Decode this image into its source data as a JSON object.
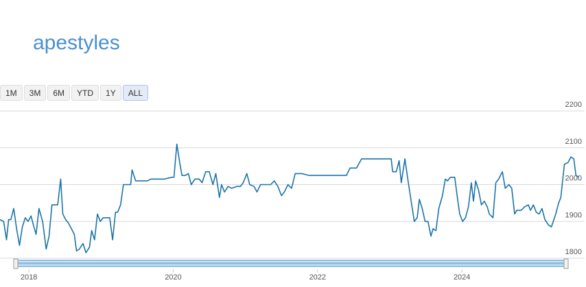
{
  "chart_data": {
    "type": "line",
    "title": "apestyles",
    "range_buttons": [
      "1M",
      "3M",
      "6M",
      "YTD",
      "1Y",
      "ALL"
    ],
    "selected_range": "ALL",
    "color": "#1a73a8",
    "grid": true,
    "y_axis_side": "right",
    "xlim": [
      2017.6,
      2025.7
    ],
    "xticks": [
      2018,
      2020,
      2022,
      2024
    ],
    "ylim": [
      1800,
      2200
    ],
    "yticks": [
      1800,
      1900,
      2000,
      2100,
      2200
    ],
    "x": [
      2017.6,
      2017.65,
      2017.69,
      2017.72,
      2017.75,
      2017.79,
      2017.83,
      2017.87,
      2017.91,
      2017.95,
      2017.99,
      2018.03,
      2018.07,
      2018.1,
      2018.14,
      2018.19,
      2018.24,
      2018.28,
      2018.32,
      2018.36,
      2018.4,
      2018.44,
      2018.47,
      2018.51,
      2018.55,
      2018.59,
      2018.63,
      2018.66,
      2018.7,
      2018.75,
      2018.79,
      2018.84,
      2018.87,
      2018.91,
      2018.95,
      2018.99,
      2019.03,
      2019.07,
      2019.12,
      2019.16,
      2019.2,
      2019.23,
      2019.27,
      2019.31,
      2019.37,
      2019.41,
      2019.43,
      2019.48,
      2019.55,
      2019.64,
      2019.69,
      2019.79,
      2019.88,
      2019.98,
      2020.01,
      2020.05,
      2020.09,
      2020.12,
      2020.17,
      2020.21,
      2020.25,
      2020.3,
      2020.36,
      2020.4,
      2020.45,
      2020.5,
      2020.55,
      2020.59,
      2020.64,
      2020.67,
      2020.71,
      2020.76,
      2020.81,
      2020.88,
      2020.93,
      2020.97,
      2021.02,
      2021.06,
      2021.12,
      2021.16,
      2021.21,
      2021.29,
      2021.35,
      2021.4,
      2021.45,
      2021.5,
      2021.54,
      2021.59,
      2021.64,
      2021.69,
      2021.78,
      2021.88,
      2021.97,
      2022.16,
      2022.4,
      2022.45,
      2022.54,
      2022.61,
      2022.73,
      2022.83,
      2022.92,
      2023.02,
      2023.04,
      2023.09,
      2023.13,
      2023.16,
      2023.21,
      2023.25,
      2023.3,
      2023.34,
      2023.38,
      2023.41,
      2023.45,
      2023.49,
      2023.53,
      2023.57,
      2023.6,
      2023.64,
      2023.68,
      2023.73,
      2023.77,
      2023.8,
      2023.84,
      2023.9,
      2023.94,
      2023.97,
      2024.01,
      2024.05,
      2024.09,
      2024.13,
      2024.16,
      2024.19,
      2024.23,
      2024.27,
      2024.31,
      2024.35,
      2024.38,
      2024.43,
      2024.47,
      2024.51,
      2024.56,
      2024.6,
      2024.65,
      2024.69,
      2024.73,
      2024.76,
      2024.82,
      2024.87,
      2024.92,
      2024.95,
      2024.99,
      2025.03,
      2025.07,
      2025.11,
      2025.15,
      2025.2,
      2025.24,
      2025.3,
      2025.34,
      2025.37,
      2025.42,
      2025.47,
      2025.51,
      2025.55,
      2025.58,
      2025.62
    ],
    "values": [
      1905,
      1900,
      1850,
      1905,
      1905,
      1935,
      1880,
      1835,
      1885,
      1910,
      1900,
      1915,
      1885,
      1865,
      1935,
      1900,
      1825,
      1860,
      1945,
      1945,
      1945,
      2015,
      1920,
      1905,
      1895,
      1880,
      1865,
      1820,
      1825,
      1840,
      1815,
      1830,
      1875,
      1850,
      1920,
      1900,
      1910,
      1910,
      1910,
      1850,
      1925,
      1925,
      1945,
      2000,
      2000,
      2000,
      2040,
      2010,
      2010,
      2010,
      2015,
      2015,
      2015,
      2020,
      2020,
      2110,
      2060,
      2025,
      2025,
      2030,
      2000,
      2015,
      2015,
      2005,
      2035,
      2035,
      2000,
      2030,
      1965,
      2000,
      1980,
      1995,
      1990,
      1995,
      1995,
      2005,
      2030,
      2000,
      1995,
      1980,
      2000,
      2000,
      2000,
      2010,
      1995,
      1970,
      1980,
      2000,
      1990,
      2030,
      2030,
      2025,
      2025,
      2025,
      2025,
      2045,
      2045,
      2070,
      2070,
      2070,
      2070,
      2070,
      2035,
      2035,
      2065,
      2005,
      2070,
      2015,
      1950,
      1900,
      1910,
      1960,
      1935,
      1900,
      1900,
      1860,
      1880,
      1875,
      1935,
      1970,
      2015,
      2010,
      2020,
      2020,
      1960,
      1920,
      1900,
      1910,
      1940,
      2005,
      1955,
      2010,
      1985,
      1945,
      1955,
      1940,
      1920,
      1910,
      2005,
      2015,
      2035,
      1990,
      2000,
      1990,
      1920,
      1930,
      1930,
      1940,
      1945,
      1930,
      1945,
      1925,
      1920,
      1935,
      1905,
      1890,
      1885,
      1920,
      1950,
      1965,
      2055,
      2060,
      2075,
      2070,
      2025,
      2020
    ]
  }
}
